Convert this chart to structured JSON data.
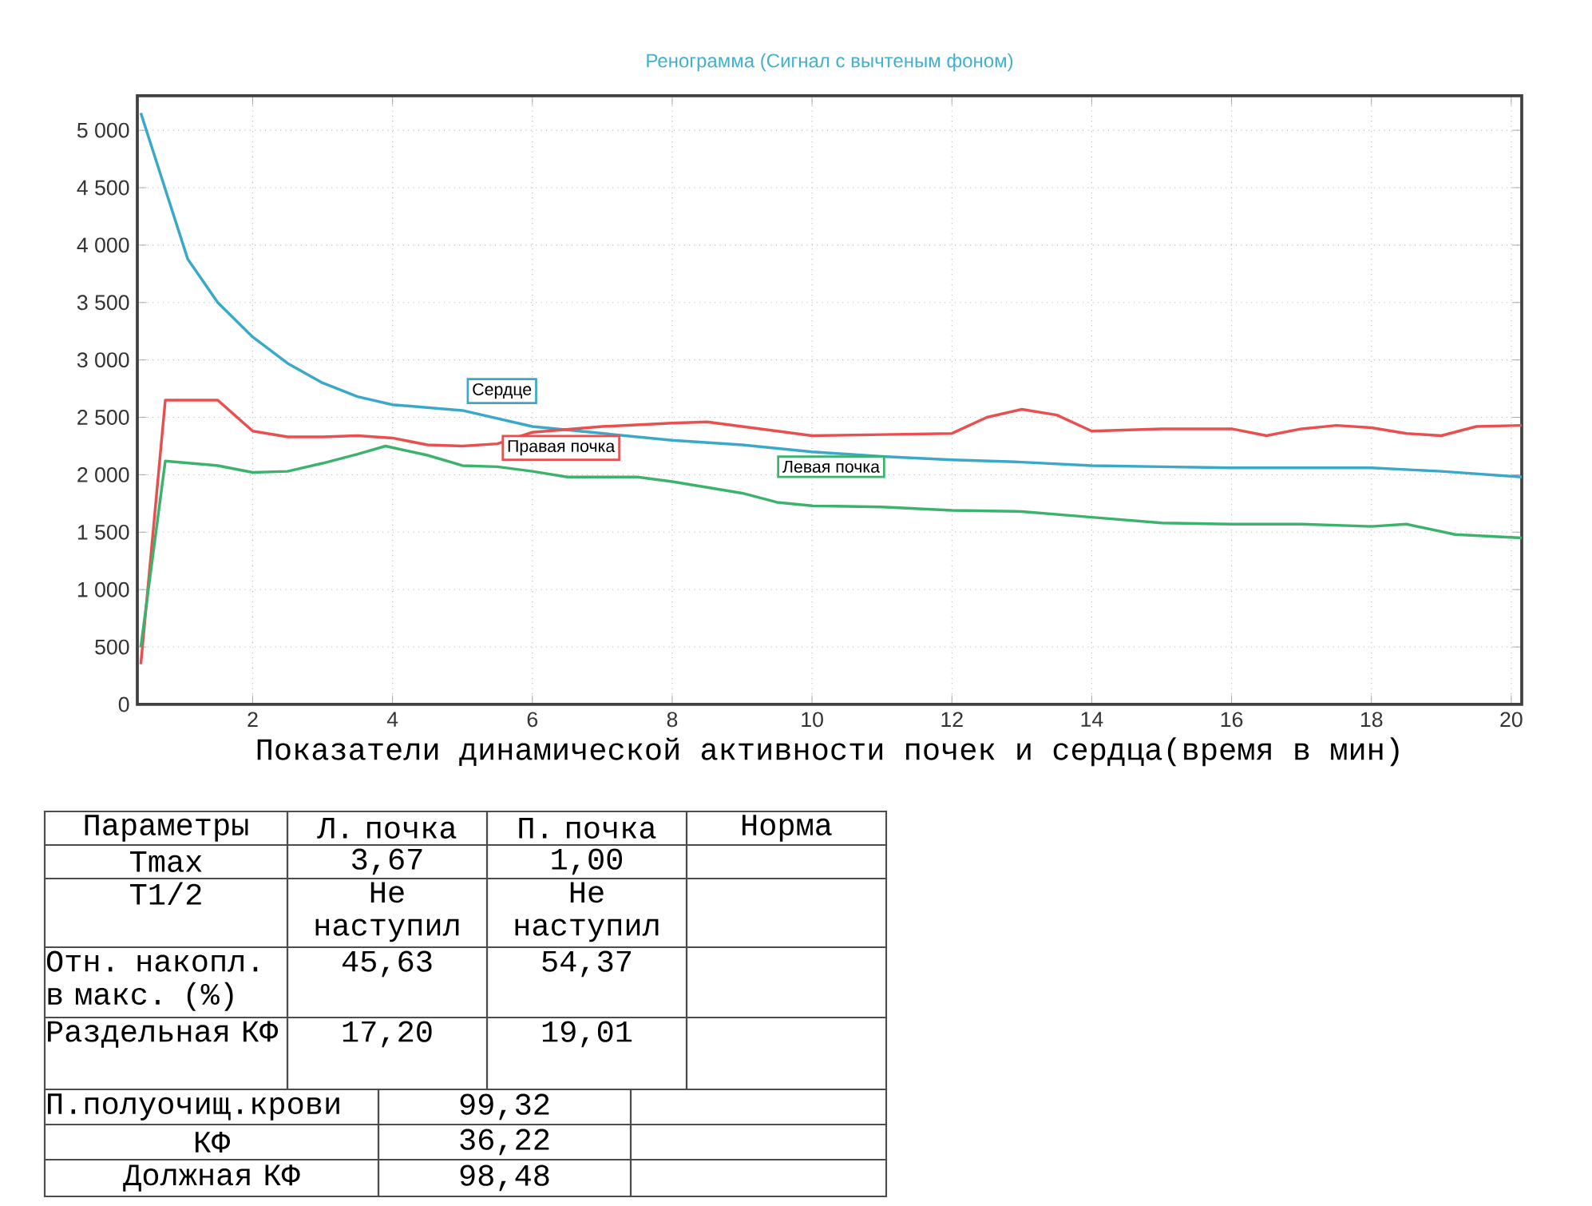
{
  "chart_data": {
    "type": "line",
    "title": "Ренограмма (Сигнал с вычтеным фоном)",
    "xlabel": "Показатели динамической активности почек и сердца(время в мин)",
    "xlim": [
      0.35,
      20.15
    ],
    "ylim": [
      0,
      5300
    ],
    "xticks": [
      2,
      4,
      6,
      8,
      10,
      12,
      14,
      16,
      18,
      20
    ],
    "yticks": [
      0,
      500,
      {
        "value": 1000,
        "label": "1 000"
      },
      {
        "value": 1500,
        "label": "1 500"
      },
      {
        "value": 2000,
        "label": "2 000"
      },
      {
        "value": 2500,
        "label": "2 500"
      },
      {
        "value": 3000,
        "label": "3 000"
      },
      {
        "value": 3500,
        "label": "3 500"
      },
      {
        "value": 4000,
        "label": "4 000"
      },
      {
        "value": 4500,
        "label": "4 500"
      },
      {
        "value": 5000,
        "label": "5 000"
      }
    ],
    "grid": true,
    "marker": "none",
    "line_style": "solid",
    "series": [
      {
        "name": "Сердце",
        "color": "#3aa8c8",
        "x": [
          0.4,
          1.07,
          1.5,
          2,
          2.5,
          3,
          3.5,
          4,
          5,
          6,
          7,
          8,
          9,
          10,
          11,
          12,
          13,
          14,
          15,
          16,
          17,
          18,
          19,
          20.15
        ],
        "values": [
          5150,
          3880,
          3500,
          3200,
          2970,
          2800,
          2680,
          2610,
          2560,
          2420,
          2360,
          2300,
          2260,
          2200,
          2160,
          2130,
          2110,
          2080,
          2070,
          2060,
          2060,
          2060,
          2030,
          1980
        ]
      },
      {
        "name": "Правая почка",
        "color": "#e85050",
        "x": [
          0.4,
          0.75,
          1.5,
          2,
          2.5,
          3,
          3.5,
          4,
          4.5,
          5,
          5.5,
          6,
          7,
          8,
          8.5,
          9,
          10,
          11,
          12,
          12.5,
          13,
          13.5,
          14,
          15,
          16,
          16.5,
          17,
          17.5,
          18,
          18.5,
          19,
          19.5,
          20.15
        ],
        "values": [
          350,
          2650,
          2650,
          2380,
          2330,
          2330,
          2340,
          2320,
          2260,
          2250,
          2270,
          2370,
          2420,
          2450,
          2460,
          2420,
          2340,
          2350,
          2360,
          2500,
          2570,
          2520,
          2380,
          2400,
          2400,
          2340,
          2400,
          2430,
          2410,
          2360,
          2340,
          2420,
          2430
        ]
      },
      {
        "name": "Левая почка",
        "color": "#3cb36c",
        "x": [
          0.4,
          0.75,
          1.5,
          2,
          2.5,
          3,
          3.5,
          3.9,
          4.5,
          5,
          5.5,
          6,
          6.5,
          7,
          7.5,
          8,
          9,
          9.5,
          10,
          11,
          12,
          13,
          14,
          15,
          16,
          17,
          18,
          18.5,
          19.2,
          20.15
        ],
        "values": [
          500,
          2120,
          2080,
          2020,
          2030,
          2100,
          2180,
          2250,
          2170,
          2080,
          2070,
          2030,
          1980,
          1980,
          1980,
          1940,
          1840,
          1760,
          1730,
          1720,
          1690,
          1680,
          1630,
          1580,
          1570,
          1570,
          1550,
          1570,
          1480,
          1450
        ]
      }
    ],
    "annotations": [
      "Параметры",
      "Л. почка",
      "П. почка",
      "Норма",
      "Tmax",
      "3,67",
      "1,00",
      "T1/2",
      "Не наступил",
      "Не наступил",
      "Отн. накопл. в макс. (%)",
      "45,63",
      "54,37",
      "Раздельная КФ",
      "17,20",
      "19,01",
      "П.полуочищ.крови",
      "99,32",
      "КФ",
      "36,22",
      "Должная КФ",
      "98,48"
    ]
  }
}
